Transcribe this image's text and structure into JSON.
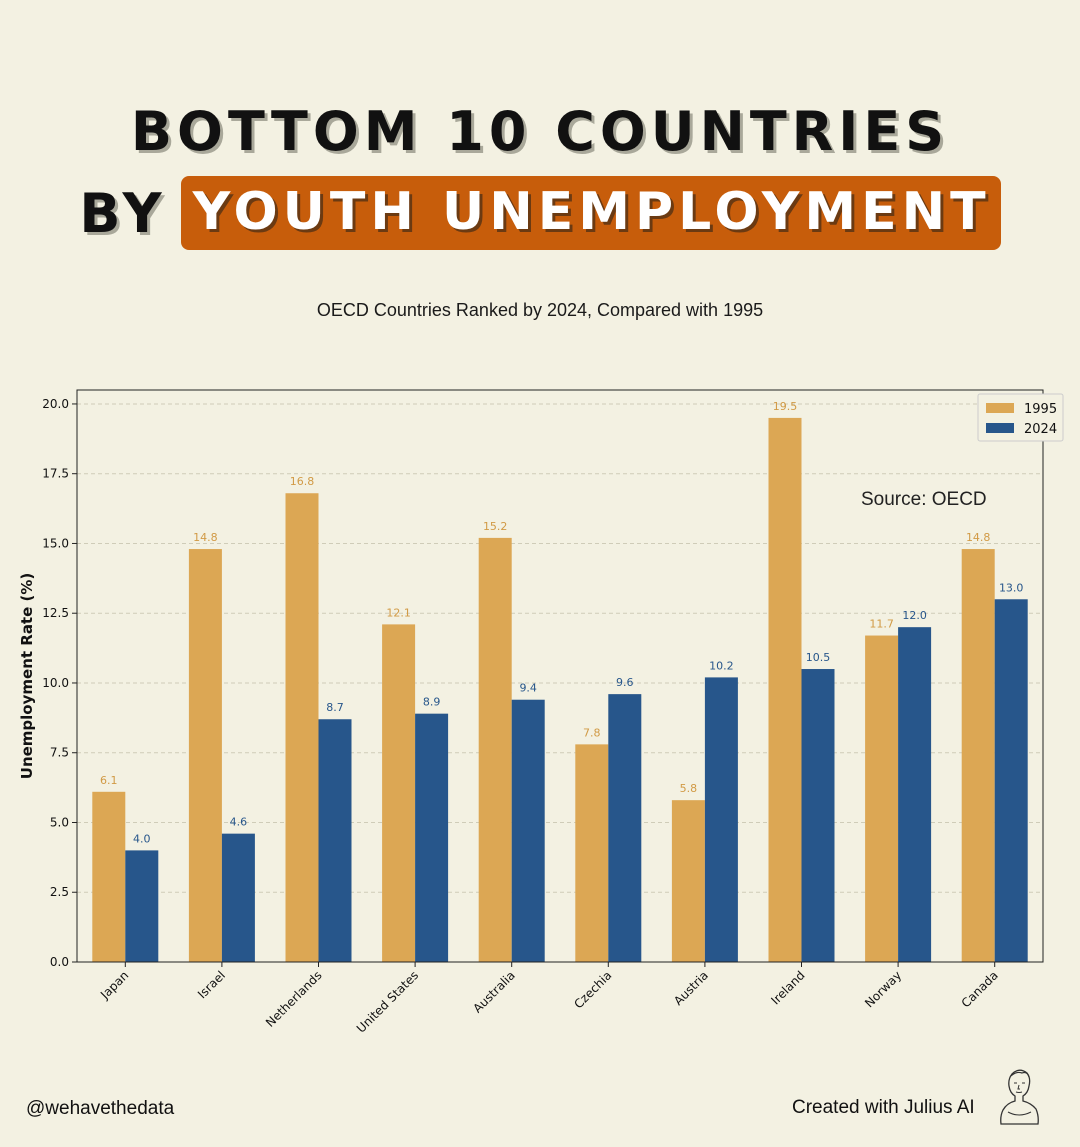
{
  "header": {
    "title_line1": "BOTTOM 10 COUNTRIES",
    "title_by": "BY",
    "title_highlight": "YOUTH UNEMPLOYMENT",
    "subtitle": "OECD Countries Ranked by 2024, Compared with 1995",
    "highlight_color": "#c75d0b"
  },
  "chart_data": {
    "type": "bar",
    "categories": [
      "Japan",
      "Israel",
      "Netherlands",
      "United States",
      "Australia",
      "Czechia",
      "Austria",
      "Ireland",
      "Norway",
      "Canada"
    ],
    "series": [
      {
        "name": "1995",
        "color": "#dca754",
        "label_color": "#d19a45",
        "values": [
          6.1,
          14.8,
          16.8,
          12.1,
          15.2,
          7.8,
          5.8,
          19.5,
          11.7,
          14.8
        ]
      },
      {
        "name": "2024",
        "color": "#27568b",
        "label_color": "#27568b",
        "values": [
          4.0,
          4.6,
          8.7,
          8.9,
          9.4,
          9.6,
          10.2,
          10.5,
          12.0,
          13.0
        ]
      }
    ],
    "ylabel": "Unemployment Rate (%)",
    "xlabel": "",
    "ylim": [
      0,
      20.5
    ],
    "yticks": [
      "0.0",
      "2.5",
      "5.0",
      "7.5",
      "10.0",
      "12.5",
      "15.0",
      "17.5",
      "20.0"
    ],
    "grid": true,
    "legend_position": "top-right",
    "annotation": "Source: OECD"
  },
  "footer": {
    "handle": "@wehavethedata",
    "credit": "Created with Julius AI",
    "logo_icon": "bust-icon"
  }
}
